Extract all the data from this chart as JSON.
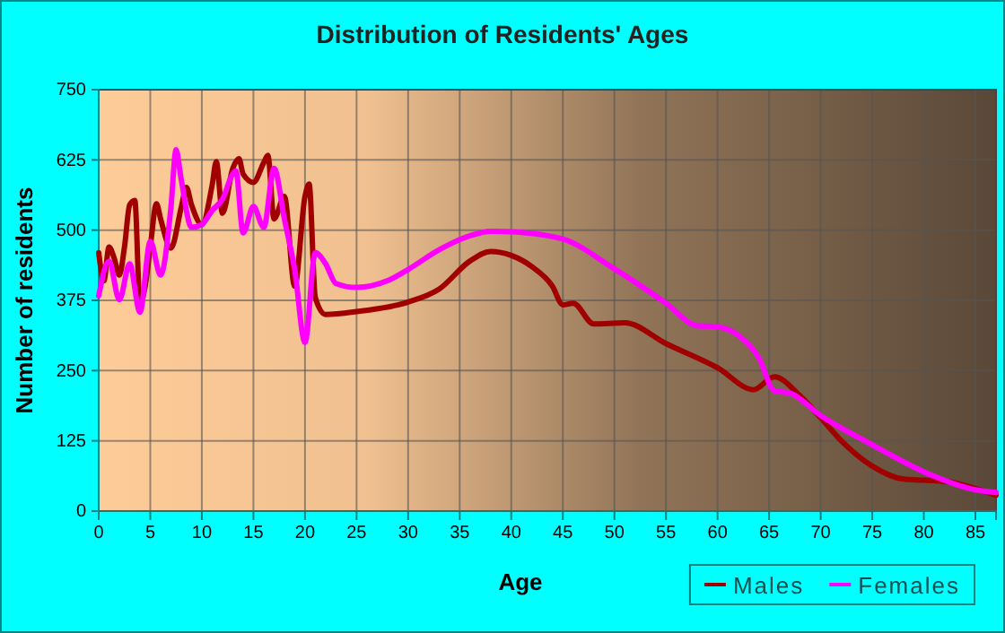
{
  "chart_data": {
    "type": "line",
    "title": "Distribution of Residents' Ages",
    "xlabel": "Age",
    "ylabel": "Number of residents",
    "xlim": [
      0,
      87
    ],
    "xticks": [
      0,
      5,
      10,
      15,
      20,
      25,
      30,
      35,
      40,
      45,
      50,
      55,
      60,
      65,
      70,
      75,
      80,
      85
    ],
    "ylim": [
      0,
      750
    ],
    "yticks": [
      0,
      125,
      250,
      375,
      500,
      625,
      750
    ],
    "grid": true,
    "legend": "bottom right",
    "line_style": "solid",
    "series": [
      {
        "name": "Males",
        "color": "#a00000",
        "x": [
          0,
          0.5,
          1,
          1.5,
          2,
          2.5,
          3,
          3.5,
          4,
          4.5,
          5,
          5.6,
          6,
          7,
          8,
          8.5,
          9,
          10,
          11,
          11.4,
          12,
          13,
          13.6,
          14,
          15,
          16,
          16.4,
          17,
          18,
          19,
          20,
          20.4,
          21,
          22,
          25,
          30,
          33,
          36,
          38,
          40,
          42,
          44,
          45,
          46,
          48,
          51,
          55,
          60,
          63.5,
          65.5,
          68,
          70,
          72,
          75,
          78,
          80,
          82.5,
          85,
          87
        ],
        "values": [
          460,
          410,
          470,
          450,
          420,
          470,
          545,
          553,
          370,
          400,
          470,
          547,
          520,
          468,
          540,
          576,
          545,
          510,
          580,
          622,
          530,
          610,
          627,
          600,
          585,
          620,
          633,
          520,
          560,
          400,
          560,
          582,
          380,
          350,
          355,
          372,
          395,
          445,
          462,
          455,
          435,
          400,
          367,
          370,
          333,
          335,
          298,
          255,
          216,
          239,
          205,
          166,
          125,
          80,
          57,
          55,
          52,
          40,
          28
        ]
      },
      {
        "name": "Females",
        "color": "#ff00ff",
        "x": [
          0,
          1,
          2,
          3,
          4,
          5,
          6,
          7,
          7.5,
          8,
          9,
          10,
          11,
          12,
          13,
          13.3,
          14,
          15,
          16,
          17,
          18,
          19,
          20,
          21,
          22,
          23,
          25,
          28,
          30,
          33,
          36,
          38,
          40,
          45,
          50,
          55,
          58,
          60,
          62,
          64,
          65.5,
          67,
          70,
          75,
          80,
          85,
          87
        ],
        "values": [
          383,
          445,
          376,
          440,
          354,
          480,
          420,
          540,
          643,
          590,
          505,
          510,
          535,
          555,
          600,
          605,
          495,
          542,
          505,
          610,
          520,
          430,
          300,
          460,
          440,
          405,
          398,
          410,
          430,
          465,
          490,
          498,
          497,
          484,
          431,
          370,
          330,
          328,
          313,
          273,
          214,
          210,
          170,
          118,
          70,
          38,
          33
        ]
      }
    ]
  }
}
